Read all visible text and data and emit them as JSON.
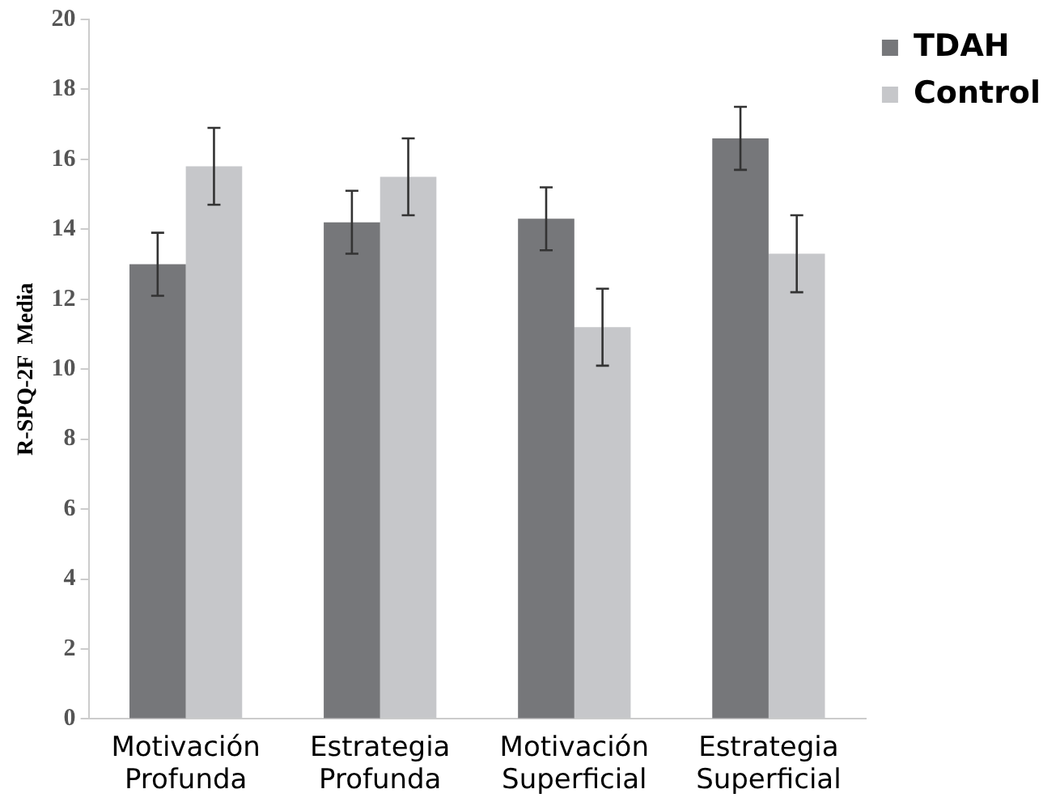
{
  "chart_data": {
    "type": "bar",
    "ylabel": "R-SPQ-2F  Media",
    "categories": [
      "Motivación Profunda",
      "Estrategia Profunda",
      "Motivación Superficial",
      "Estrategia Superficial"
    ],
    "series": [
      {
        "name": "TDAH",
        "color": "#76777a",
        "values": [
          13.0,
          14.2,
          14.3,
          16.6
        ],
        "errors": [
          0.9,
          0.9,
          0.9,
          0.9
        ]
      },
      {
        "name": "Control",
        "color": "#c6c7ca",
        "values": [
          15.8,
          15.5,
          11.2,
          13.3
        ],
        "errors": [
          1.1,
          1.1,
          1.1,
          1.1
        ]
      }
    ],
    "ylim": [
      0,
      20
    ],
    "yticks": [
      0,
      2,
      4,
      6,
      8,
      10,
      12,
      14,
      16,
      18,
      20
    ],
    "grid": false,
    "legend": "top right"
  }
}
